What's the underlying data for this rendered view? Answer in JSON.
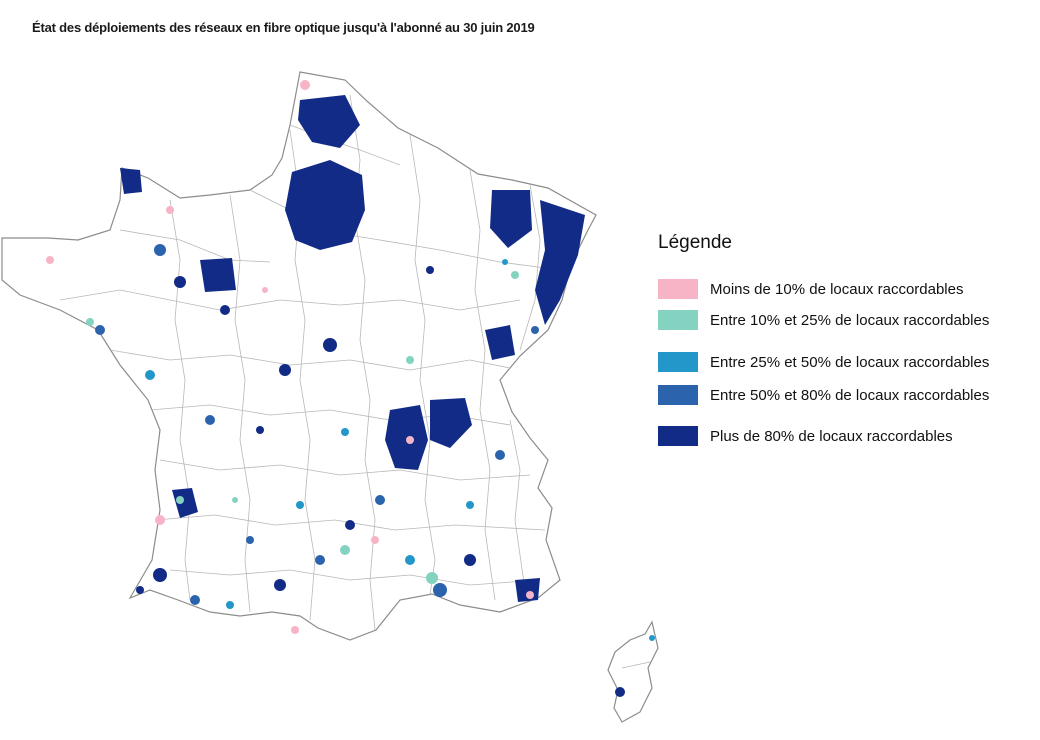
{
  "title": "État des déploiements des réseaux en fibre optique jusqu'à l'abonné au 30 juin 2019",
  "legend": {
    "title": "Légende",
    "items": [
      {
        "label": "Moins de 10% de locaux raccordables",
        "color": "#f6b4c6"
      },
      {
        "label": "Entre 10% et 25% de locaux raccordables",
        "color": "#84d2c0"
      },
      {
        "label": "Entre 25% et 50% de locaux raccordables",
        "color": "#2397c9"
      },
      {
        "label": "Entre 50% et 80% de locaux raccordables",
        "color": "#2c63ad"
      },
      {
        "label": "Plus de 80% de locaux raccordables",
        "color": "#122b86"
      }
    ]
  },
  "colors": {
    "outline": "#8c8c8c",
    "land": "#ffffff"
  }
}
